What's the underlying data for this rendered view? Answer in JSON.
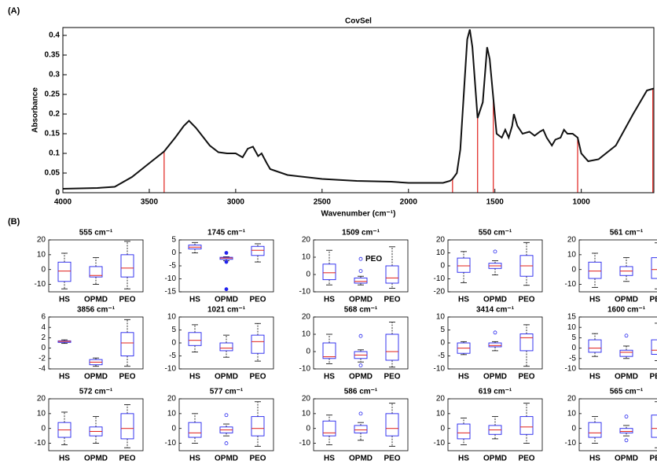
{
  "panel_labels": [
    "(A)",
    "(B)"
  ],
  "chart_data": [
    {
      "type": "line",
      "title": "CovSel",
      "xlabel": "Wavenumber (cm⁻¹)",
      "ylabel": "Absorbance",
      "color": "#111111",
      "x": [
        4000,
        3800,
        3700,
        3600,
        3500,
        3414,
        3350,
        3300,
        3270,
        3230,
        3150,
        3100,
        3050,
        3000,
        2960,
        2930,
        2900,
        2870,
        2850,
        2820,
        2800,
        2700,
        2500,
        2300,
        2100,
        2000,
        1800,
        1760,
        1745,
        1720,
        1700,
        1680,
        1660,
        1645,
        1630,
        1600,
        1570,
        1545,
        1530,
        1509,
        1490,
        1460,
        1440,
        1420,
        1400,
        1390,
        1370,
        1340,
        1300,
        1270,
        1240,
        1220,
        1200,
        1170,
        1150,
        1120,
        1100,
        1080,
        1050,
        1021,
        1000,
        960,
        900,
        800,
        700,
        620,
        580
      ],
      "values": [
        0.01,
        0.012,
        0.015,
        0.04,
        0.075,
        0.105,
        0.14,
        0.17,
        0.183,
        0.165,
        0.12,
        0.103,
        0.1,
        0.1,
        0.09,
        0.112,
        0.117,
        0.093,
        0.1,
        0.075,
        0.06,
        0.045,
        0.035,
        0.03,
        0.028,
        0.025,
        0.025,
        0.03,
        0.035,
        0.05,
        0.11,
        0.25,
        0.39,
        0.415,
        0.37,
        0.19,
        0.23,
        0.37,
        0.34,
        0.24,
        0.15,
        0.14,
        0.16,
        0.14,
        0.17,
        0.2,
        0.17,
        0.15,
        0.155,
        0.145,
        0.155,
        0.16,
        0.14,
        0.12,
        0.135,
        0.14,
        0.16,
        0.15,
        0.15,
        0.14,
        0.1,
        0.08,
        0.085,
        0.12,
        0.2,
        0.26,
        0.265
      ],
      "vlines": {
        "color": "#e0201b",
        "x": [
          3414,
          1745,
          1600,
          1509,
          1021,
          586
        ],
        "values": [
          0.105,
          0.035,
          0.19,
          0.24,
          0.14,
          0.262
        ]
      },
      "xlim": [
        4000,
        580
      ],
      "xticks": [
        4000,
        3500,
        3000,
        2500,
        2000,
        1500,
        1000
      ],
      "ylim": [
        0,
        0.42
      ],
      "yticks": [
        0,
        0.05,
        0.1,
        0.15,
        0.2,
        0.25,
        0.3,
        0.35,
        0.4
      ]
    },
    {
      "type": "box",
      "title": "555 cm⁻¹",
      "categories": [
        "HS",
        "OPMD",
        "PEO"
      ],
      "ylim": [
        -15,
        20
      ],
      "yticks": [
        -10,
        0,
        10,
        20
      ],
      "boxes": [
        {
          "whislo": -13,
          "q1": -8,
          "med": -1,
          "q3": 5,
          "whishi": 11,
          "fliers": []
        },
        {
          "whislo": -10,
          "q1": -5,
          "med": -4,
          "q3": 2,
          "whishi": 8,
          "fliers": []
        },
        {
          "whislo": -13,
          "q1": -5,
          "med": 1,
          "q3": 10,
          "whishi": 19,
          "fliers": []
        }
      ]
    },
    {
      "type": "box",
      "title": "1745 cm⁻¹",
      "categories": [
        "HS",
        "OPMD",
        "PEO"
      ],
      "ylim": [
        -15,
        5
      ],
      "yticks": [
        -15,
        -10,
        -5,
        0,
        5
      ],
      "filled_fliers": true,
      "boxes": [
        {
          "whislo": 0,
          "q1": 1.5,
          "med": 2.2,
          "q3": 3,
          "whishi": 4,
          "fliers": []
        },
        {
          "whislo": -3,
          "q1": -2.5,
          "med": -2,
          "q3": -1.7,
          "whishi": -1.5,
          "fliers": [
            0,
            -3.5,
            -14
          ]
        },
        {
          "whislo": -3.5,
          "q1": -1,
          "med": 1,
          "q3": 2.5,
          "whishi": 3.5,
          "fliers": []
        }
      ]
    },
    {
      "type": "box",
      "title": "1509 cm⁻¹",
      "categories": [
        "HS",
        "OPMD",
        "PEO"
      ],
      "ylim": [
        -10,
        20
      ],
      "yticks": [
        -10,
        0,
        10,
        20
      ],
      "annotation": "PEO",
      "boxes": [
        {
          "whislo": -6,
          "q1": -3,
          "med": 1,
          "q3": 6,
          "whishi": 14,
          "fliers": []
        },
        {
          "whislo": -6,
          "q1": -5,
          "med": -4,
          "q3": -2,
          "whishi": -1,
          "fliers": [
            2,
            9
          ]
        },
        {
          "whislo": -8,
          "q1": -5,
          "med": -2,
          "q3": 5,
          "whishi": 16,
          "fliers": []
        }
      ]
    },
    {
      "type": "box",
      "title": "550 cm⁻¹",
      "categories": [
        "HS",
        "OPMD",
        "PEO"
      ],
      "ylim": [
        -20,
        20
      ],
      "yticks": [
        -20,
        -10,
        0,
        10,
        20
      ],
      "boxes": [
        {
          "whislo": -13,
          "q1": -5,
          "med": 0,
          "q3": 6,
          "whishi": 11,
          "fliers": []
        },
        {
          "whislo": -7,
          "q1": -2,
          "med": 0,
          "q3": 2,
          "whishi": 4,
          "fliers": [
            11
          ]
        },
        {
          "whislo": -15,
          "q1": -8,
          "med": 0,
          "q3": 8,
          "whishi": 18,
          "fliers": []
        }
      ]
    },
    {
      "type": "box",
      "title": "561 cm⁻¹",
      "categories": [
        "HS",
        "OPMD",
        "PEO"
      ],
      "ylim": [
        -15,
        20
      ],
      "yticks": [
        -10,
        0,
        10,
        20
      ],
      "boxes": [
        {
          "whislo": -12,
          "q1": -6,
          "med": -1,
          "q3": 5,
          "whishi": 11,
          "fliers": []
        },
        {
          "whislo": -8,
          "q1": -4,
          "med": -1,
          "q3": 2,
          "whishi": 8,
          "fliers": []
        },
        {
          "whislo": -13,
          "q1": -6,
          "med": 0,
          "q3": 8,
          "whishi": 18,
          "fliers": []
        }
      ]
    },
    {
      "type": "box",
      "title": "3856 cm⁻¹",
      "categories": [
        "HS",
        "OPMD",
        "PEO"
      ],
      "ylim": [
        -4,
        6
      ],
      "yticks": [
        -4,
        -2,
        0,
        2,
        4,
        6
      ],
      "boxes": [
        {
          "whislo": 0.9,
          "q1": 1.1,
          "med": 1.3,
          "q3": 1.4,
          "whishi": 1.6,
          "fliers": []
        },
        {
          "whislo": -3.5,
          "q1": -3.2,
          "med": -2.7,
          "q3": -2.2,
          "whishi": -1.9,
          "fliers": []
        },
        {
          "whislo": -3.5,
          "q1": -1.5,
          "med": 1,
          "q3": 3,
          "whishi": 5.5,
          "fliers": []
        }
      ]
    },
    {
      "type": "box",
      "title": "1021 cm⁻¹",
      "categories": [
        "HS",
        "OPMD",
        "PEO"
      ],
      "ylim": [
        -10,
        10
      ],
      "yticks": [
        -10,
        -5,
        0,
        5,
        10
      ],
      "boxes": [
        {
          "whislo": -3.5,
          "q1": -1,
          "med": 1,
          "q3": 4,
          "whishi": 7,
          "fliers": []
        },
        {
          "whislo": -5.5,
          "q1": -3,
          "med": -2,
          "q3": 0,
          "whishi": 3,
          "fliers": []
        },
        {
          "whislo": -7,
          "q1": -4,
          "med": 0.5,
          "q3": 3,
          "whishi": 7.5,
          "fliers": []
        }
      ]
    },
    {
      "type": "box",
      "title": "568 cm⁻¹",
      "categories": [
        "HS",
        "OPMD",
        "PEO"
      ],
      "ylim": [
        -10,
        20
      ],
      "yticks": [
        -10,
        0,
        10,
        20
      ],
      "boxes": [
        {
          "whislo": -7,
          "q1": -4,
          "med": -3,
          "q3": 5,
          "whishi": 10,
          "fliers": []
        },
        {
          "whislo": -6,
          "q1": -4,
          "med": -2,
          "q3": 0,
          "whishi": 1,
          "fliers": [
            9,
            -8
          ]
        },
        {
          "whislo": -9,
          "q1": -5,
          "med": 0,
          "q3": 10,
          "whishi": 17,
          "fliers": []
        }
      ]
    },
    {
      "type": "box",
      "title": "3414 cm⁻¹",
      "categories": [
        "HS",
        "OPMD",
        "PEO"
      ],
      "ylim": [
        -10,
        10
      ],
      "yticks": [
        -10,
        -5,
        0,
        5,
        10
      ],
      "boxes": [
        {
          "whislo": -4.5,
          "q1": -4,
          "med": -2,
          "q3": 0,
          "whishi": 0.5,
          "fliers": []
        },
        {
          "whislo": -3,
          "q1": -1.5,
          "med": -1,
          "q3": 0,
          "whishi": 0.5,
          "fliers": [
            4
          ]
        },
        {
          "whislo": -9,
          "q1": -3,
          "med": 2,
          "q3": 3.5,
          "whishi": 7,
          "fliers": []
        }
      ]
    },
    {
      "type": "box",
      "title": "1600 cm⁻¹",
      "categories": [
        "HS",
        "OPMD",
        "PEO"
      ],
      "ylim": [
        -10,
        15
      ],
      "yticks": [
        -10,
        -5,
        0,
        5,
        10,
        15
      ],
      "boxes": [
        {
          "whislo": -4,
          "q1": -2,
          "med": 0,
          "q3": 4,
          "whishi": 7,
          "fliers": []
        },
        {
          "whislo": -5,
          "q1": -4,
          "med": -2,
          "q3": -1,
          "whishi": 1,
          "fliers": [
            6
          ]
        },
        {
          "whislo": -6,
          "q1": -3,
          "med": -1,
          "q3": 4,
          "whishi": 12,
          "fliers": []
        }
      ]
    },
    {
      "type": "box",
      "title": "572 cm⁻¹",
      "categories": [
        "HS",
        "OPMD",
        "PEO"
      ],
      "ylim": [
        -15,
        20
      ],
      "yticks": [
        -10,
        0,
        10,
        20
      ],
      "boxes": [
        {
          "whislo": -11,
          "q1": -6,
          "med": -1,
          "q3": 4,
          "whishi": 11,
          "fliers": []
        },
        {
          "whislo": -10,
          "q1": -5,
          "med": -2,
          "q3": 1,
          "whishi": 8,
          "fliers": []
        },
        {
          "whislo": -13,
          "q1": -7,
          "med": 0,
          "q3": 10,
          "whishi": 16,
          "fliers": []
        }
      ]
    },
    {
      "type": "box",
      "title": "577 cm⁻¹",
      "categories": [
        "HS",
        "OPMD",
        "PEO"
      ],
      "ylim": [
        -15,
        20
      ],
      "yticks": [
        -10,
        0,
        10,
        20
      ],
      "boxes": [
        {
          "whislo": -10,
          "q1": -6,
          "med": -3,
          "q3": 4,
          "whishi": 10,
          "fliers": []
        },
        {
          "whislo": -5,
          "q1": -3,
          "med": -1,
          "q3": 1,
          "whishi": 3,
          "fliers": [
            9,
            -10
          ]
        },
        {
          "whislo": -12,
          "q1": -5,
          "med": 0,
          "q3": 8,
          "whishi": 18,
          "fliers": []
        }
      ]
    },
    {
      "type": "box",
      "title": "586 cm⁻¹",
      "categories": [
        "HS",
        "OPMD",
        "PEO"
      ],
      "ylim": [
        -15,
        20
      ],
      "yticks": [
        -10,
        0,
        10,
        20
      ],
      "boxes": [
        {
          "whislo": -11,
          "q1": -5,
          "med": -3,
          "q3": 5,
          "whishi": 9,
          "fliers": []
        },
        {
          "whislo": -8,
          "q1": -3,
          "med": -1,
          "q3": 2,
          "whishi": 4,
          "fliers": [
            10
          ]
        },
        {
          "whislo": -12,
          "q1": -5,
          "med": 0,
          "q3": 10,
          "whishi": 17,
          "fliers": []
        }
      ]
    },
    {
      "type": "box",
      "title": "619 cm⁻¹",
      "categories": [
        "HS",
        "OPMD",
        "PEO"
      ],
      "ylim": [
        -15,
        20
      ],
      "yticks": [
        -10,
        0,
        10,
        20
      ],
      "boxes": [
        {
          "whislo": -11,
          "q1": -7,
          "med": -3,
          "q3": 3,
          "whishi": 7,
          "fliers": []
        },
        {
          "whislo": -7,
          "q1": -4,
          "med": -1,
          "q3": 2,
          "whishi": 8,
          "fliers": []
        },
        {
          "whislo": -10,
          "q1": -4,
          "med": 1,
          "q3": 8,
          "whishi": 17,
          "fliers": []
        }
      ]
    },
    {
      "type": "box",
      "title": "565 cm⁻¹",
      "categories": [
        "HS",
        "OPMD",
        "PEO"
      ],
      "ylim": [
        -15,
        20
      ],
      "yticks": [
        -10,
        0,
        10,
        20
      ],
      "boxes": [
        {
          "whislo": -10,
          "q1": -6,
          "med": -3,
          "q3": 4,
          "whishi": 8,
          "fliers": []
        },
        {
          "whislo": -5,
          "q1": -3,
          "med": -2,
          "q3": 0,
          "whishi": 2,
          "fliers": [
            8,
            -8
          ]
        },
        {
          "whislo": -13,
          "q1": -6,
          "med": 0,
          "q3": 9,
          "whishi": 18,
          "fliers": []
        }
      ]
    }
  ]
}
